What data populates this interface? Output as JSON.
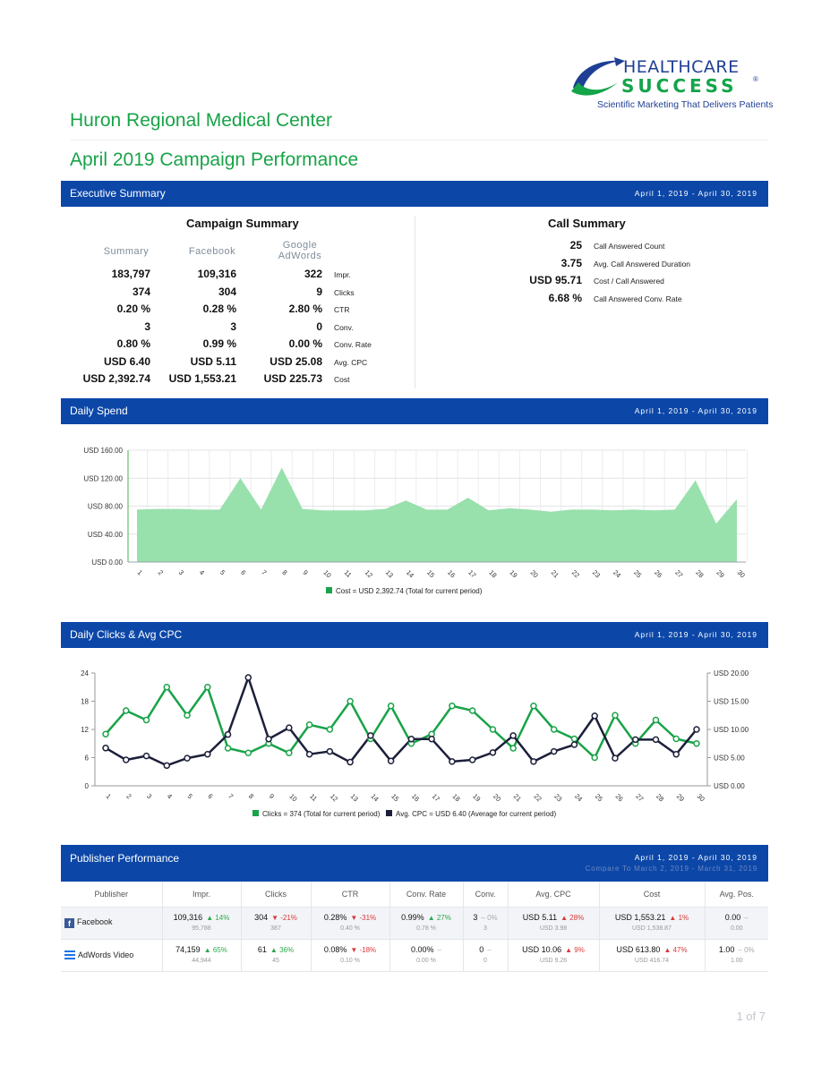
{
  "logo": {
    "brand_top": "HEALTHCARE",
    "brand_bottom": "SUCCESS",
    "registered": "®",
    "tagline": "Scientific Marketing That Delivers Patients"
  },
  "client_name": "Huron Regional Medical Center",
  "report_title": "April 2019 Campaign Performance",
  "colors": {
    "brand_green": "#18a348",
    "header_blue": "#0c47a8",
    "cost_area": "#92dea8",
    "clicks_line": "#18a348",
    "cpc_line": "#1c1f3a"
  },
  "exec_summary": {
    "bar_title": "Executive Summary",
    "date_range": "April 1, 2019 - April 30, 2019",
    "campaign_summary": {
      "title": "Campaign Summary",
      "columns": [
        "Summary",
        "Facebook",
        "Google AdWords"
      ],
      "rows": [
        {
          "summary": "183,797",
          "facebook": "109,316",
          "adwords": "322",
          "label": "Impr."
        },
        {
          "summary": "374",
          "facebook": "304",
          "adwords": "9",
          "label": "Clicks"
        },
        {
          "summary": "0.20 %",
          "facebook": "0.28 %",
          "adwords": "2.80 %",
          "label": "CTR"
        },
        {
          "summary": "3",
          "facebook": "3",
          "adwords": "0",
          "label": "Conv."
        },
        {
          "summary": "0.80 %",
          "facebook": "0.99 %",
          "adwords": "0.00 %",
          "label": "Conv. Rate"
        },
        {
          "summary": "USD 6.40",
          "facebook": "USD 5.11",
          "adwords": "USD 25.08",
          "label": "Avg. CPC"
        },
        {
          "summary": "USD 2,392.74",
          "facebook": "USD 1,553.21",
          "adwords": "USD 225.73",
          "label": "Cost"
        }
      ]
    },
    "call_summary": {
      "title": "Call Summary",
      "rows": [
        {
          "value": "25",
          "label": "Call Answered Count"
        },
        {
          "value": "3.75",
          "label": "Avg. Call Answered Duration"
        },
        {
          "value": "USD 95.71",
          "label": "Cost / Call Answered"
        },
        {
          "value": "6.68 %",
          "label": "Call Answered Conv. Rate"
        }
      ]
    }
  },
  "daily_spend": {
    "bar_title": "Daily Spend",
    "date_range": "April 1, 2019 - April 30, 2019"
  },
  "daily_clicks": {
    "bar_title": "Daily Clicks & Avg CPC",
    "date_range": "April 1, 2019 - April 30, 2019"
  },
  "publisher_performance": {
    "bar_title": "Publisher Performance",
    "date_range": "April 1, 2019 - April 30, 2019",
    "compare_range": "Compare To March 2, 2019 - March 31, 2019",
    "headers": [
      "Publisher",
      "Impr.",
      "Clicks",
      "CTR",
      "Conv. Rate",
      "Conv.",
      "Avg. CPC",
      "Cost",
      "Avg. Pos."
    ],
    "rows": [
      {
        "publisher": "Facebook",
        "icon": "facebook-icon",
        "cells": [
          {
            "value": "109,316",
            "change": "▲ 14%",
            "dir": "up",
            "prev": "95,788"
          },
          {
            "value": "304",
            "change": "▼ -21%",
            "dir": "dn",
            "prev": "387"
          },
          {
            "value": "0.28%",
            "change": "▼ -31%",
            "dir": "dn",
            "prev": "0.40 %"
          },
          {
            "value": "0.99%",
            "change": "▲ 27%",
            "dir": "up",
            "prev": "0.78 %"
          },
          {
            "value": "3",
            "change": "– 0%",
            "dir": "nc",
            "prev": "3"
          },
          {
            "value": "USD 5.11",
            "change": "▲ 28%",
            "dir": "upr",
            "prev": "USD 3.98"
          },
          {
            "value": "USD 1,553.21",
            "change": "▲ 1%",
            "dir": "upr",
            "prev": "USD 1,538.87"
          },
          {
            "value": "0.00",
            "change": "–",
            "dir": "nc",
            "prev": "0.00"
          }
        ]
      },
      {
        "publisher": "AdWords Video",
        "icon": "adwords-icon",
        "cells": [
          {
            "value": "74,159",
            "change": "▲ 65%",
            "dir": "up",
            "prev": "44,944"
          },
          {
            "value": "61",
            "change": "▲ 36%",
            "dir": "up",
            "prev": "45"
          },
          {
            "value": "0.08%",
            "change": "▼ -18%",
            "dir": "dn",
            "prev": "0.10 %"
          },
          {
            "value": "0.00%",
            "change": "–",
            "dir": "nc",
            "prev": "0.00 %"
          },
          {
            "value": "0",
            "change": "–",
            "dir": "nc",
            "prev": "0"
          },
          {
            "value": "USD 10.06",
            "change": "▲ 9%",
            "dir": "upr",
            "prev": "USD 9.26"
          },
          {
            "value": "USD 613.80",
            "change": "▲ 47%",
            "dir": "upr",
            "prev": "USD 416.74"
          },
          {
            "value": "1.00",
            "change": "– 0%",
            "dir": "nc",
            "prev": "1.00"
          }
        ]
      }
    ]
  },
  "pager": "1 of 7",
  "chart_data": [
    {
      "type": "area",
      "title": "",
      "x": [
        1,
        2,
        3,
        4,
        5,
        6,
        7,
        8,
        9,
        10,
        11,
        12,
        13,
        14,
        15,
        16,
        17,
        18,
        19,
        20,
        21,
        22,
        23,
        24,
        25,
        26,
        27,
        28,
        29,
        30
      ],
      "series": [
        {
          "name": "Cost",
          "values": [
            75,
            76,
            76,
            75,
            75,
            120,
            75,
            135,
            76,
            74,
            74,
            74,
            76,
            88,
            75,
            75,
            92,
            74,
            77,
            75,
            72,
            75,
            75,
            74,
            75,
            74,
            75,
            117,
            55,
            90
          ]
        }
      ],
      "y_ticks": [
        "USD 0.00",
        "USD 40.00",
        "USD 80.00",
        "USD 120.00",
        "USD 160.00"
      ],
      "ylim": [
        0,
        160
      ],
      "legend": "Cost = USD 2,392.74 (Total for current period)",
      "legend_position": "bottom",
      "grid": true
    },
    {
      "type": "line",
      "title": "",
      "x": [
        1,
        2,
        3,
        4,
        5,
        6,
        7,
        8,
        9,
        10,
        11,
        12,
        13,
        14,
        15,
        16,
        17,
        18,
        19,
        20,
        21,
        22,
        23,
        24,
        25,
        26,
        27,
        28,
        29,
        30
      ],
      "series": [
        {
          "name": "Clicks",
          "axis": "left",
          "values": [
            11,
            16,
            14,
            21,
            15,
            21,
            8,
            7,
            9,
            7,
            13,
            12,
            18,
            10,
            17,
            9,
            11,
            17,
            16,
            12,
            8,
            17,
            12,
            10,
            6,
            15,
            9,
            14,
            10,
            9
          ]
        },
        {
          "name": "Avg. CPC",
          "axis": "right",
          "values": [
            6.7,
            4.6,
            5.3,
            3.6,
            4.9,
            5.6,
            9.1,
            19.2,
            8.3,
            10.3,
            5.6,
            6.1,
            4.2,
            8.9,
            4.4,
            8.3,
            8.3,
            4.3,
            4.6,
            5.9,
            8.9,
            4.3,
            6.1,
            7.3,
            12.4,
            4.9,
            8.2,
            8.2,
            5.6,
            10.0
          ]
        }
      ],
      "y_left_ticks": [
        "0",
        "6",
        "12",
        "18",
        "24"
      ],
      "y_right_ticks": [
        "USD 0.00",
        "USD 5.00",
        "USD 10.00",
        "USD 15.00",
        "USD 20.00"
      ],
      "ylim_left": [
        0,
        24
      ],
      "ylim_right": [
        0,
        20
      ],
      "legend": [
        "Clicks = 374 (Total for current period)",
        "Avg. CPC = USD 6.40 (Average for current period)"
      ],
      "legend_position": "bottom",
      "grid": false
    }
  ]
}
